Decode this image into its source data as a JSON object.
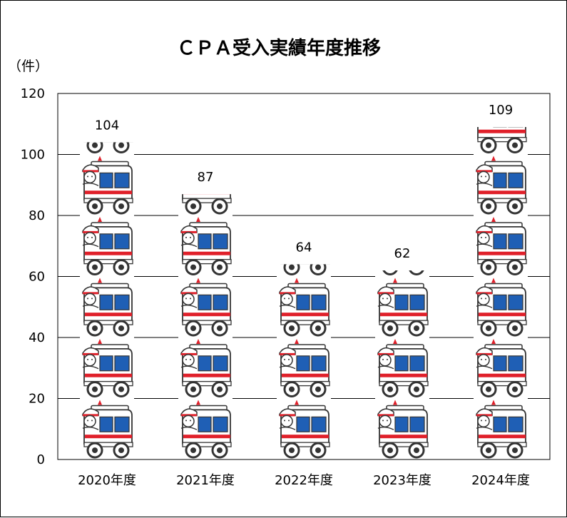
{
  "chart_data": {
    "type": "bar",
    "title": "ＣＰＡ受入実績年度推移",
    "ylabel": "（件）",
    "xlabel": "",
    "categories": [
      "2020年度",
      "2021年度",
      "2022年度",
      "2023年度",
      "2024年度"
    ],
    "values": [
      104,
      87,
      64,
      62,
      109
    ],
    "data_labels": [
      "104",
      "87",
      "64",
      "62",
      "109"
    ],
    "ylim": [
      0,
      120
    ],
    "yticks": [
      "0",
      "20",
      "40",
      "60",
      "80",
      "100",
      "120"
    ],
    "ytick_values": [
      0,
      20,
      40,
      60,
      80,
      100,
      120
    ],
    "pictograph_unit": 20,
    "pictograph_icon": "ambulance-icon",
    "grid": true
  },
  "colors": {
    "grid": "#000000",
    "ambulance_body": "#ffffff",
    "ambulance_window": "#1f5fb5",
    "ambulance_stripe": "#e0202a",
    "ambulance_outline": "#333333"
  }
}
